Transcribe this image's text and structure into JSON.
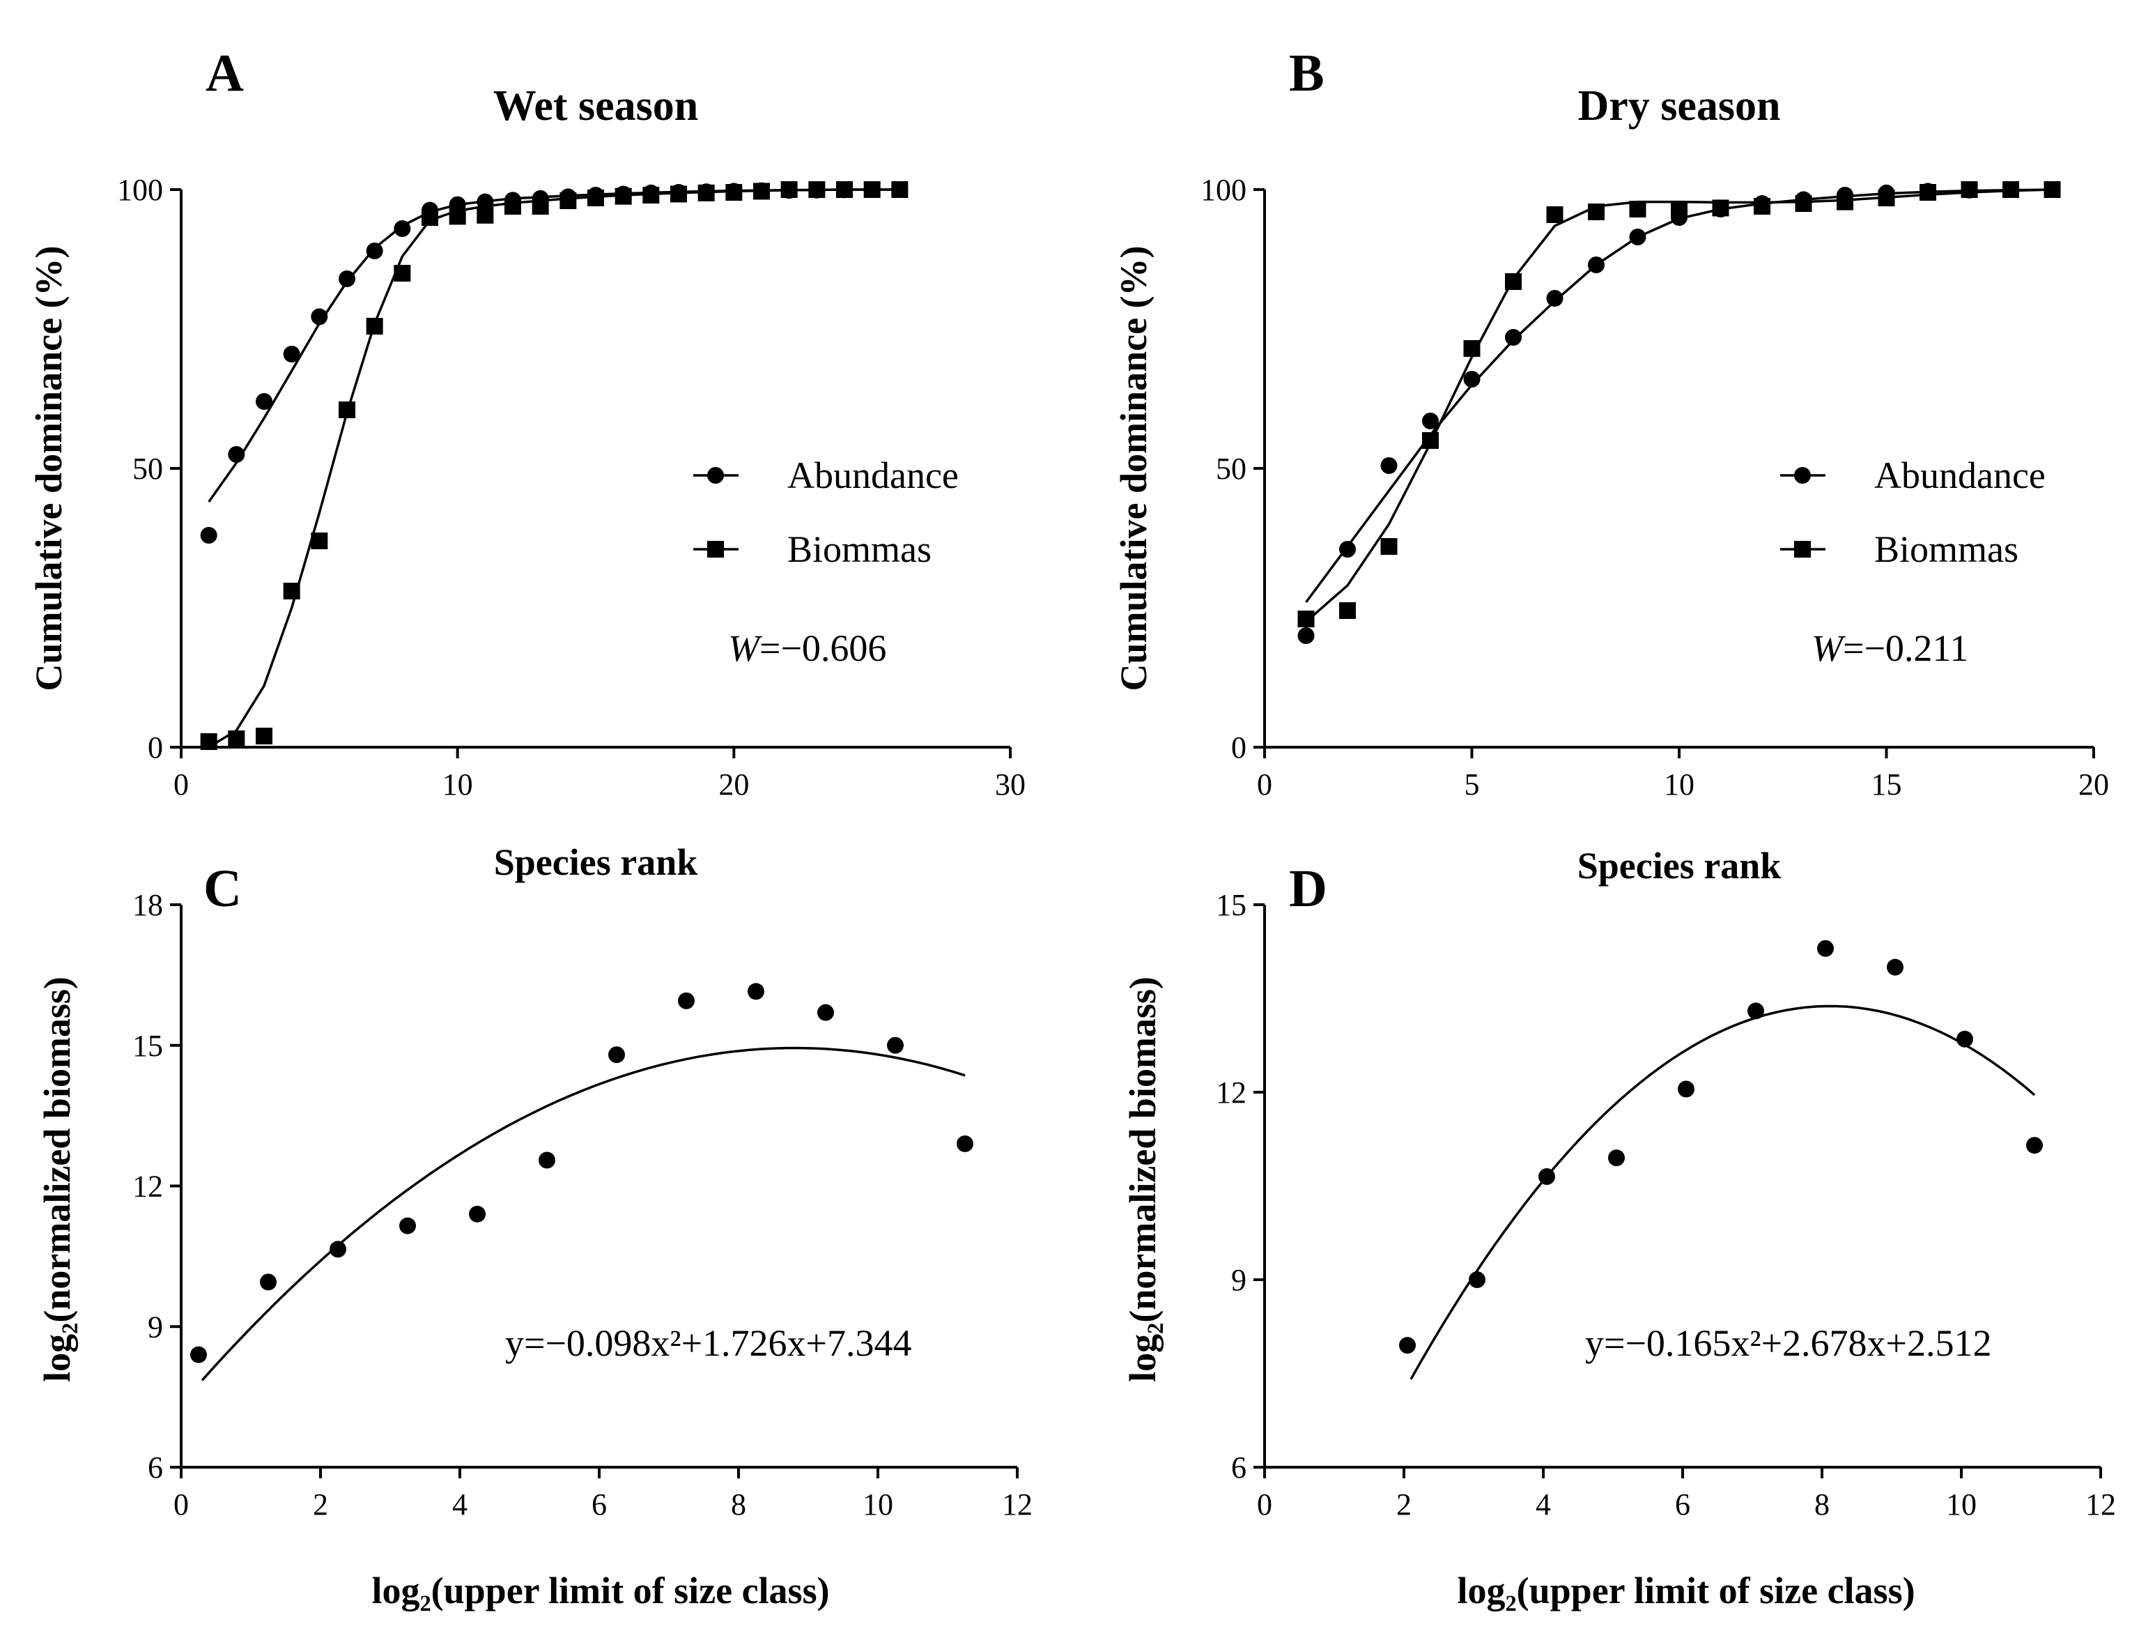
{
  "chart_data": [
    {
      "id": "A",
      "type": "line",
      "panel_label": "A",
      "title": "Wet season",
      "xlabel": "Species rank",
      "ylabel": "Cumulative dominance (%)",
      "xlim": [
        0,
        30
      ],
      "ylim": [
        0,
        100
      ],
      "xticks": [
        0,
        10,
        20,
        30
      ],
      "yticks": [
        0,
        50,
        100
      ],
      "series": [
        {
          "name": "Abundance",
          "marker": "circle",
          "x": [
            1,
            2,
            3,
            4,
            5,
            6,
            7,
            8,
            9,
            10,
            11,
            12,
            13,
            14,
            15,
            16,
            17,
            18,
            19,
            20,
            21,
            22,
            23,
            24,
            25,
            26
          ],
          "values": [
            38,
            52.5,
            62,
            70.5,
            77.2,
            84,
            89,
            93,
            96.3,
            97.3,
            97.8,
            98.1,
            98.4,
            98.7,
            99,
            99.2,
            99.4,
            99.5,
            99.6,
            99.7,
            99.8,
            99.85,
            99.9,
            99.95,
            100,
            100
          ],
          "fit_x": [
            1,
            2,
            3,
            4,
            5,
            6,
            7,
            8,
            9,
            10,
            11,
            12,
            14,
            16,
            18,
            20,
            22,
            24,
            26
          ],
          "fit_y": [
            44,
            51,
            59,
            67.5,
            76,
            83.5,
            89.5,
            93.5,
            96,
            97.3,
            97.9,
            98.4,
            98.9,
            99.3,
            99.6,
            99.8,
            99.9,
            100,
            100
          ]
        },
        {
          "name": "Biommas",
          "marker": "square",
          "x": [
            1,
            2,
            3,
            4,
            5,
            6,
            7,
            8,
            9,
            10,
            11,
            12,
            13,
            14,
            15,
            16,
            17,
            18,
            19,
            20,
            21,
            22,
            23,
            24,
            25,
            26
          ],
          "values": [
            1,
            1.5,
            2,
            28,
            37,
            60.5,
            75.5,
            85,
            95,
            95.2,
            95.4,
            97,
            97,
            98,
            98.5,
            98.8,
            99,
            99.2,
            99.4,
            99.5,
            99.7,
            100,
            100,
            100,
            100,
            100
          ],
          "fit_x": [
            1,
            2,
            3,
            4,
            5,
            6,
            7,
            8,
            9,
            10,
            11,
            12,
            14,
            16,
            18,
            20,
            22,
            24,
            26
          ],
          "fit_y": [
            0,
            3,
            11,
            25,
            42,
            60,
            76,
            88,
            94.5,
            96.2,
            97,
            97.6,
            98.4,
            99,
            99.4,
            99.7,
            99.9,
            100,
            100
          ]
        }
      ],
      "legend": "right",
      "annotation_var": "W",
      "annotation_value": "=−0.606"
    },
    {
      "id": "B",
      "type": "line",
      "panel_label": "B",
      "title": "Dry season",
      "xlabel": "Species rank",
      "ylabel": "Cumulative dominance (%)",
      "xlim": [
        0,
        20
      ],
      "ylim": [
        0,
        100
      ],
      "xticks": [
        0,
        5,
        10,
        15,
        20
      ],
      "yticks": [
        0,
        50,
        100
      ],
      "series": [
        {
          "name": "Abundance",
          "marker": "circle",
          "x": [
            1,
            2,
            3,
            4,
            5,
            6,
            7,
            8,
            9,
            10,
            11,
            12,
            13,
            14,
            15,
            16,
            17,
            18,
            19
          ],
          "values": [
            20,
            35.5,
            50.5,
            58.5,
            66,
            73.5,
            80.5,
            86.5,
            91.5,
            95,
            96.5,
            97.5,
            98.2,
            99,
            99.4,
            99.7,
            99.9,
            100,
            100
          ],
          "fit_x": [
            1,
            2,
            3,
            4,
            5,
            6,
            7,
            8,
            9,
            10,
            11,
            12,
            13,
            14,
            15,
            16,
            17,
            18,
            19
          ],
          "fit_y": [
            26,
            36,
            46,
            56,
            65,
            73,
            80,
            86.5,
            91.5,
            94.8,
            96.5,
            97.5,
            98.2,
            98.8,
            99.3,
            99.6,
            99.8,
            99.9,
            100
          ]
        },
        {
          "name": "Biommas",
          "marker": "square",
          "x": [
            1,
            2,
            3,
            4,
            5,
            6,
            7,
            8,
            9,
            10,
            11,
            12,
            13,
            14,
            15,
            16,
            17,
            18,
            19
          ],
          "values": [
            23,
            24.5,
            36,
            55,
            71.5,
            83.5,
            95.5,
            96,
            96.5,
            96.5,
            96.7,
            97,
            97.5,
            97.8,
            98.5,
            99.5,
            100,
            100,
            100
          ],
          "fit_x": [
            1,
            2,
            3,
            4,
            5,
            6,
            7,
            8,
            9,
            10,
            11,
            12,
            13,
            14,
            15,
            16,
            17,
            18,
            19
          ],
          "fit_y": [
            22.5,
            29,
            40,
            54.5,
            70,
            84,
            93.5,
            97,
            97.8,
            97.8,
            97.7,
            97.7,
            97.8,
            98.1,
            98.6,
            99.1,
            99.5,
            99.8,
            100
          ]
        }
      ],
      "legend": "right",
      "annotation_var": "W",
      "annotation_value": "=−0.211"
    },
    {
      "id": "C",
      "type": "scatter",
      "panel_label": "C",
      "title": "",
      "xlabel": "log₂(upper limit of size class)",
      "ylabel": "log₂(normalized biomass)",
      "xlim": [
        0,
        12
      ],
      "ylim": [
        6,
        18
      ],
      "xticks": [
        0,
        2,
        4,
        6,
        8,
        10,
        12
      ],
      "yticks": [
        6,
        9,
        12,
        15,
        18
      ],
      "points": {
        "x": [
          0.25,
          1.25,
          2.25,
          3.25,
          4.25,
          5.25,
          6.25,
          7.25,
          8.25,
          9.25,
          10.25,
          11.25
        ],
        "y": [
          8.4,
          9.95,
          10.65,
          11.15,
          11.4,
          12.55,
          14.8,
          15.95,
          16.15,
          15.7,
          15.0,
          12.9
        ]
      },
      "fit": {
        "a": -0.098,
        "b": 1.726,
        "c": 7.344,
        "x_range": [
          0.3,
          11.25
        ]
      },
      "equation": "y=−0.098x²+1.726x+7.344"
    },
    {
      "id": "D",
      "type": "scatter",
      "panel_label": "D",
      "title": "",
      "xlabel": "log₂(upper limit of size class)",
      "ylabel": "log₂(normalized biomass)",
      "xlim": [
        0,
        12
      ],
      "ylim": [
        6,
        15
      ],
      "xticks": [
        0,
        2,
        4,
        6,
        8,
        10,
        12
      ],
      "yticks": [
        6,
        9,
        12,
        15
      ],
      "points": {
        "x": [
          2.05,
          3.05,
          4.05,
          5.05,
          6.05,
          7.05,
          8.05,
          9.05,
          10.05,
          11.05
        ],
        "y": [
          7.95,
          9.0,
          10.65,
          10.95,
          12.05,
          13.3,
          14.3,
          14.0,
          12.85,
          11.15
        ]
      },
      "fit": {
        "a": -0.165,
        "b": 2.678,
        "c": 2.512,
        "x_range": [
          2.1,
          11.05
        ]
      },
      "equation": "y=−0.165x²+2.678x+2.512"
    }
  ]
}
